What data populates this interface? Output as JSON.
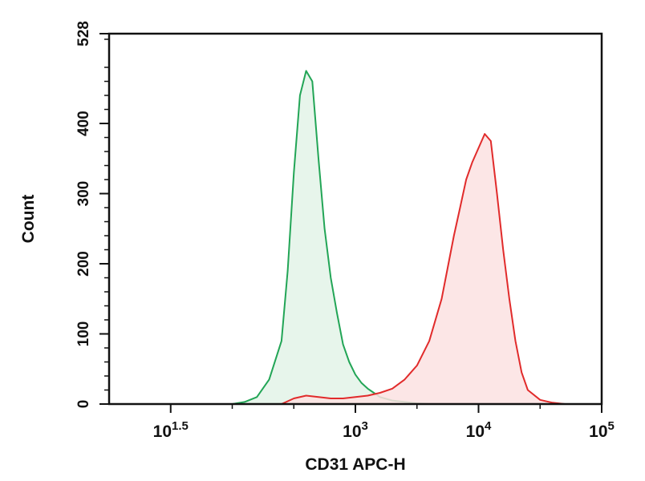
{
  "chart_data": {
    "type": "area",
    "title": "",
    "xlabel": "CD31 APC-H",
    "ylabel": "Count",
    "x_scale": "log10",
    "xlim": [
      1.0,
      5.0
    ],
    "ylim": [
      0,
      528
    ],
    "grid": false,
    "legend": "none",
    "x_ticks": [
      {
        "value": 1.5,
        "base": "10",
        "exp": "1.5"
      },
      {
        "value": 3,
        "base": "10",
        "exp": "3"
      },
      {
        "value": 4,
        "base": "10",
        "exp": "4"
      },
      {
        "value": 5,
        "base": "10",
        "exp": "5"
      }
    ],
    "y_ticks": [
      {
        "value": 0,
        "label": "0"
      },
      {
        "value": 100,
        "label": "100"
      },
      {
        "value": 200,
        "label": "200"
      },
      {
        "value": 300,
        "label": "300"
      },
      {
        "value": 400,
        "label": "400"
      },
      {
        "value": 528,
        "label": "528"
      }
    ],
    "series": [
      {
        "color": "#22a556",
        "fill": "#e3f3e8",
        "x": [
          2.0,
          2.1,
          2.2,
          2.3,
          2.4,
          2.45,
          2.5,
          2.55,
          2.6,
          2.65,
          2.7,
          2.75,
          2.8,
          2.85,
          2.9,
          2.95,
          3.0,
          3.05,
          3.1,
          3.15,
          3.2,
          3.3,
          3.4,
          3.5,
          3.6,
          3.7
        ],
        "y": [
          0,
          3,
          10,
          35,
          90,
          190,
          330,
          440,
          475,
          460,
          350,
          250,
          180,
          130,
          85,
          60,
          42,
          30,
          22,
          16,
          10,
          5,
          3,
          1,
          0,
          0
        ]
      },
      {
        "color": "#e12b2b",
        "fill": "#fbe2e2",
        "x": [
          2.4,
          2.5,
          2.6,
          2.7,
          2.8,
          2.9,
          3.0,
          3.1,
          3.2,
          3.3,
          3.4,
          3.5,
          3.6,
          3.7,
          3.8,
          3.85,
          3.9,
          3.95,
          4.0,
          4.05,
          4.1,
          4.15,
          4.2,
          4.25,
          4.3,
          4.35,
          4.4,
          4.5,
          4.6,
          4.7
        ],
        "y": [
          0,
          8,
          12,
          10,
          8,
          8,
          10,
          12,
          16,
          22,
          35,
          55,
          90,
          150,
          240,
          280,
          320,
          345,
          365,
          385,
          375,
          300,
          220,
          150,
          90,
          45,
          20,
          6,
          2,
          0
        ]
      }
    ]
  }
}
